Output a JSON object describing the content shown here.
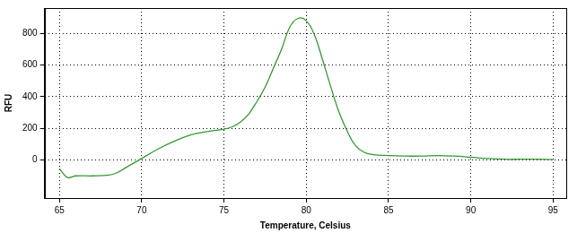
{
  "chart_data": {
    "type": "line",
    "x_label": "Temperature, Celsius",
    "y_label": "RFU",
    "x": [
      65,
      65.5,
      66,
      67,
      68,
      68.5,
      69,
      70,
      71,
      72,
      73,
      74,
      75,
      75.5,
      76,
      76.5,
      77,
      77.5,
      78,
      78.5,
      79,
      79.5,
      80,
      80.5,
      81,
      81.5,
      82,
      82.5,
      83,
      83.5,
      84,
      85,
      86,
      87,
      88,
      89,
      90,
      91,
      92,
      93,
      94,
      95
    ],
    "values": [
      -55,
      -110,
      -100,
      -100,
      -95,
      -80,
      -50,
      10,
      70,
      120,
      160,
      180,
      195,
      210,
      240,
      290,
      370,
      460,
      580,
      700,
      840,
      895,
      880,
      790,
      630,
      460,
      300,
      180,
      90,
      50,
      35,
      28,
      25,
      25,
      28,
      25,
      18,
      10,
      5,
      5,
      5,
      3
    ],
    "color": "#339933",
    "line_style": "solid",
    "xlim": [
      64.1,
      95.8
    ],
    "xticks": [
      65,
      70,
      75,
      80,
      85,
      90,
      95
    ],
    "ylim": [
      -240,
      960
    ],
    "yticks": [
      0,
      200,
      400,
      600,
      800
    ],
    "grid": true
  }
}
